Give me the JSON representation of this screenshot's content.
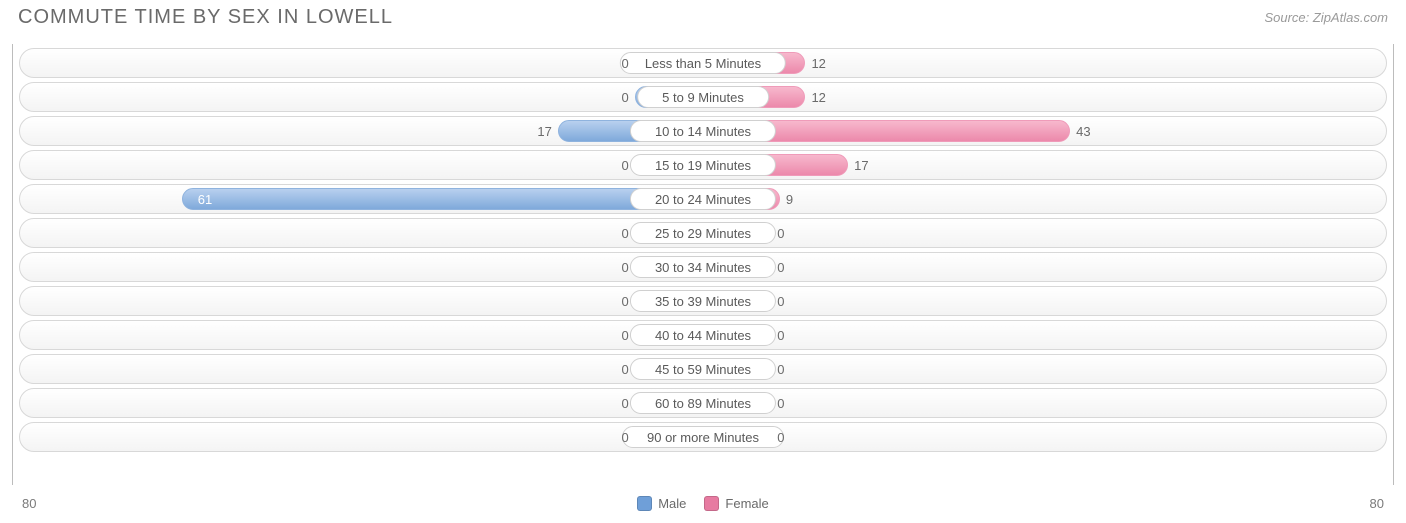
{
  "title": "COMMUTE TIME BY SEX IN LOWELL",
  "source": "Source: ZipAtlas.com",
  "chart": {
    "type": "diverging-bar",
    "axis_max": 80,
    "axis_left_label": "80",
    "axis_right_label": "80",
    "track_bg_top": "#ffffff",
    "track_bg_bottom": "#f4f4f4",
    "track_border": "#d8d8d8",
    "male_color_top": "#b8d0ef",
    "male_color_bottom": "#7fa9db",
    "male_border": "#8fb3de",
    "female_color_top": "#f7b8cd",
    "female_color_bottom": "#ec89ab",
    "female_border": "#ef9bb9",
    "label_bg": "#ffffff",
    "label_border": "#d0d0d0",
    "label_fontsize": 13,
    "value_fontsize": 13,
    "min_bar_pct": 10,
    "categories": [
      {
        "label": "Less than 5 Minutes",
        "male": 0,
        "female": 12
      },
      {
        "label": "5 to 9 Minutes",
        "male": 0,
        "female": 12
      },
      {
        "label": "10 to 14 Minutes",
        "male": 17,
        "female": 43
      },
      {
        "label": "15 to 19 Minutes",
        "male": 0,
        "female": 17
      },
      {
        "label": "20 to 24 Minutes",
        "male": 61,
        "female": 9
      },
      {
        "label": "25 to 29 Minutes",
        "male": 0,
        "female": 0
      },
      {
        "label": "30 to 34 Minutes",
        "male": 0,
        "female": 0
      },
      {
        "label": "35 to 39 Minutes",
        "male": 0,
        "female": 0
      },
      {
        "label": "40 to 44 Minutes",
        "male": 0,
        "female": 0
      },
      {
        "label": "45 to 59 Minutes",
        "male": 0,
        "female": 0
      },
      {
        "label": "60 to 89 Minutes",
        "male": 0,
        "female": 0
      },
      {
        "label": "90 or more Minutes",
        "male": 0,
        "female": 0
      }
    ]
  },
  "legend": {
    "male": "Male",
    "female": "Female",
    "male_swatch": "#6f9fd8",
    "female_swatch": "#e77ba1"
  }
}
